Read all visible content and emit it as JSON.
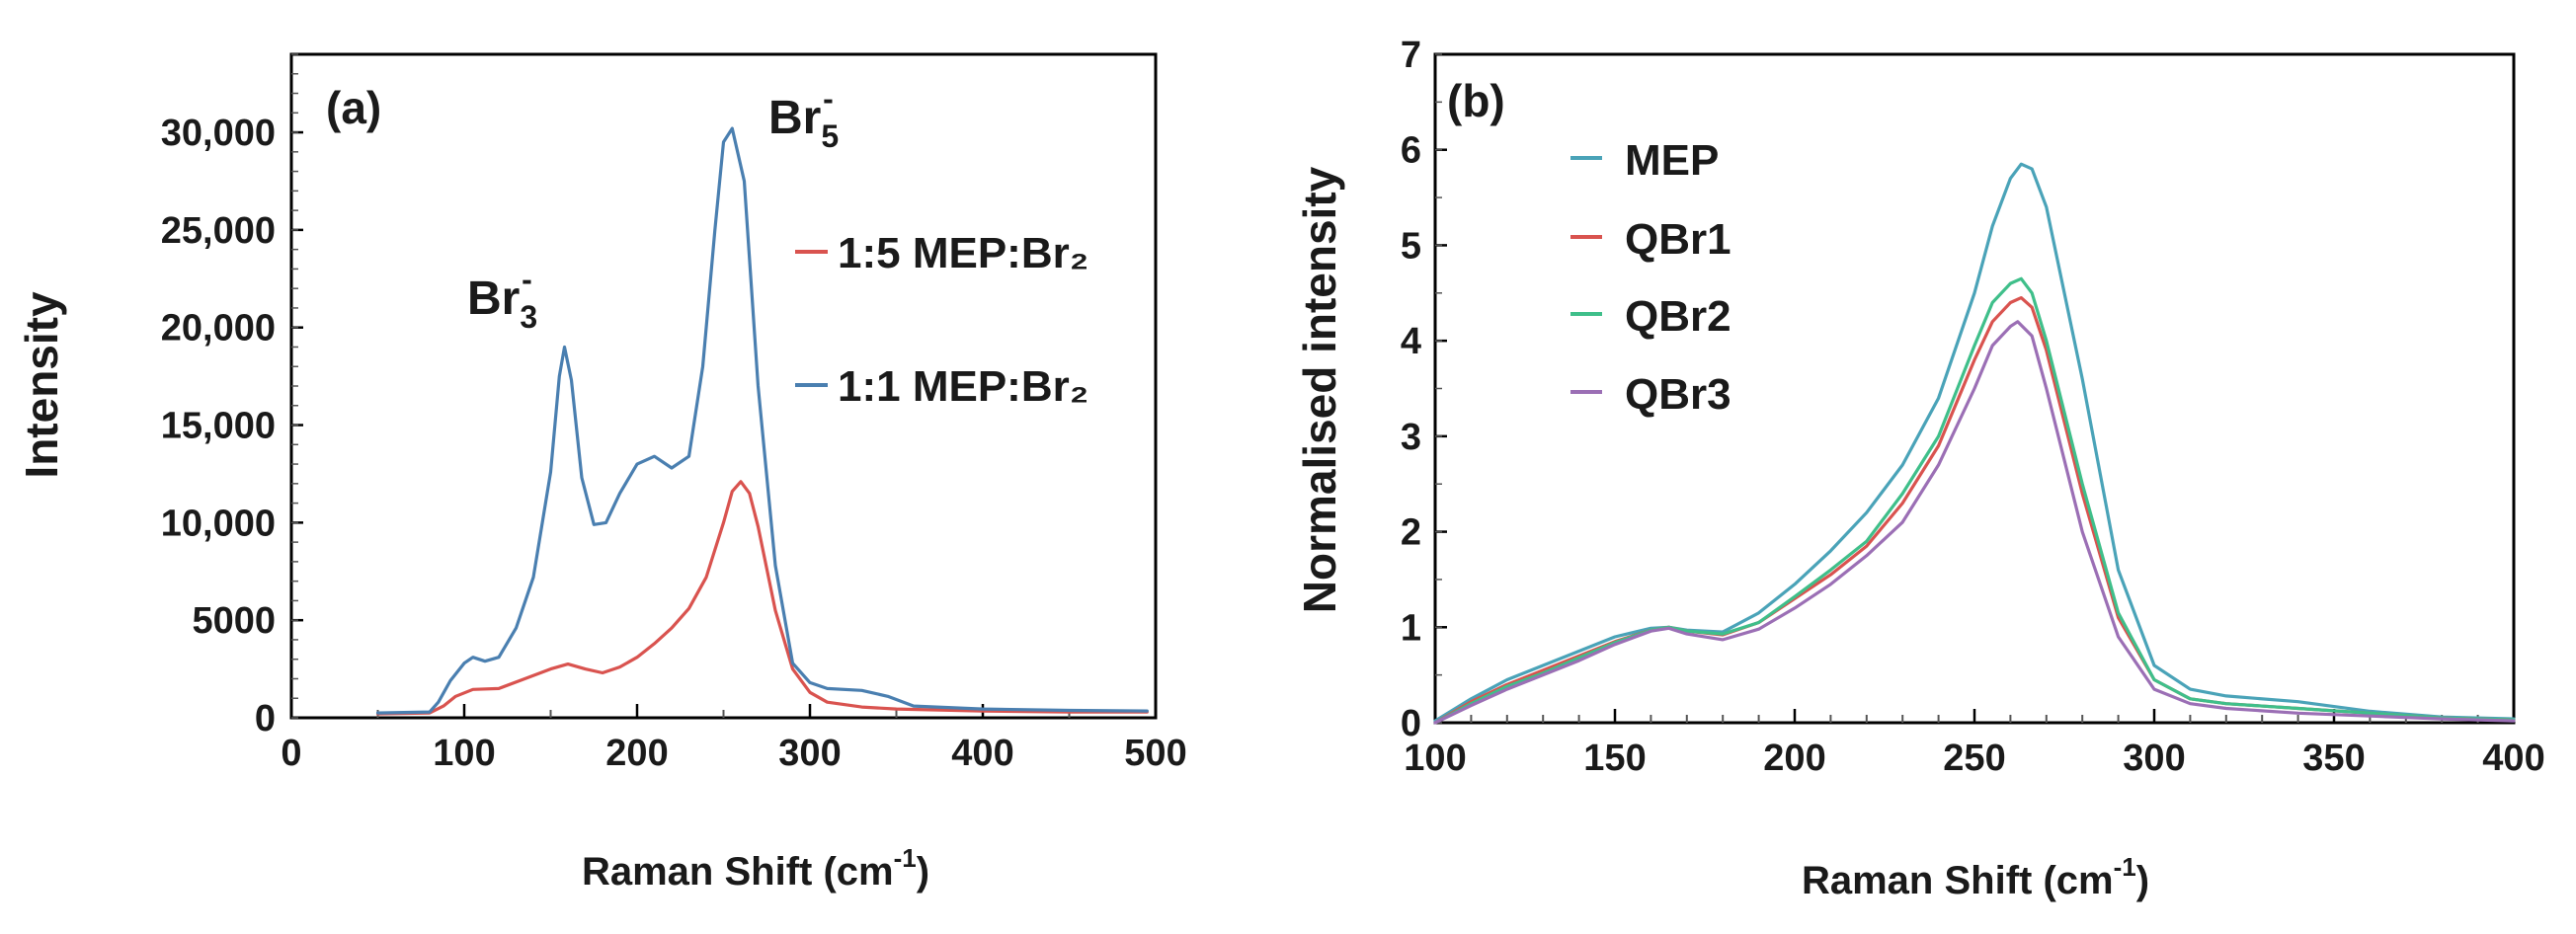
{
  "chart_data": [
    {
      "panel": "(a)",
      "type": "line",
      "xlabel_main": "Raman Shift (cm",
      "xlabel_sup": "-1",
      "xlabel_close": ")",
      "ylabel": "Intensity",
      "xlim": [
        0,
        500
      ],
      "ylim": [
        0,
        34000
      ],
      "xticks": [
        0,
        100,
        200,
        300,
        400,
        500
      ],
      "xtick_labels": [
        "0",
        "100",
        "200",
        "300",
        "400",
        "500"
      ],
      "yticks": [
        0,
        5000,
        10000,
        15000,
        20000,
        25000,
        30000
      ],
      "ytick_labels": [
        "0",
        "5000",
        "10,000",
        "15,000",
        "20,000",
        "25,000",
        "30,000"
      ],
      "annotations": [
        {
          "base": "Br",
          "sub": "3",
          "sup": "-",
          "x": 140,
          "y": 20500
        },
        {
          "base": "Br",
          "sub": "5",
          "sup": "-",
          "x": 275,
          "y": 29600
        }
      ],
      "series": [
        {
          "name": "1:5 MEP:Br₂",
          "color": "#d9534f",
          "x": [
            50,
            80,
            88,
            95,
            105,
            120,
            135,
            150,
            160,
            170,
            180,
            190,
            200,
            210,
            220,
            230,
            240,
            250,
            255,
            260,
            265,
            270,
            280,
            290,
            300,
            310,
            330,
            350,
            400,
            450,
            495
          ],
          "y": [
            200,
            250,
            600,
            1100,
            1450,
            1500,
            2000,
            2500,
            2750,
            2500,
            2300,
            2600,
            3100,
            3800,
            4600,
            5600,
            7200,
            10000,
            11600,
            12100,
            11500,
            9800,
            5500,
            2500,
            1300,
            800,
            550,
            450,
            350,
            300,
            300
          ]
        },
        {
          "name": "1:1 MEP:Br₂",
          "color": "#4a7fb0",
          "x": [
            50,
            80,
            85,
            92,
            100,
            105,
            112,
            120,
            130,
            140,
            150,
            155,
            158,
            162,
            168,
            175,
            182,
            190,
            200,
            210,
            220,
            230,
            238,
            245,
            250,
            255,
            262,
            270,
            280,
            290,
            300,
            310,
            330,
            345,
            360,
            400,
            450,
            495
          ],
          "y": [
            250,
            300,
            800,
            1900,
            2800,
            3100,
            2900,
            3100,
            4600,
            7200,
            12600,
            17500,
            19000,
            17300,
            12300,
            9900,
            10000,
            11500,
            13000,
            13400,
            12800,
            13400,
            18000,
            25000,
            29500,
            30200,
            27500,
            17000,
            7800,
            2800,
            1800,
            1500,
            1400,
            1100,
            600,
            450,
            380,
            350
          ]
        }
      ]
    },
    {
      "panel": "(b)",
      "type": "line",
      "xlabel_main": "Raman Shift (cm",
      "xlabel_sup": "-1",
      "xlabel_close": ")",
      "ylabel": "Normalised intensity",
      "xlim": [
        100,
        400
      ],
      "ylim": [
        0,
        7
      ],
      "xticks": [
        100,
        150,
        200,
        250,
        300,
        350,
        400
      ],
      "xtick_labels": [
        "100",
        "150",
        "200",
        "250",
        "300",
        "350",
        "400"
      ],
      "yticks": [
        0,
        1,
        2,
        3,
        4,
        5,
        6,
        7
      ],
      "ytick_labels": [
        "0",
        "1",
        "2",
        "3",
        "4",
        "5",
        "6",
        "7"
      ],
      "series": [
        {
          "name": "MEP",
          "color": "#4aa3b8",
          "x": [
            100,
            110,
            120,
            130,
            140,
            150,
            160,
            165,
            170,
            180,
            190,
            200,
            210,
            220,
            230,
            240,
            250,
            255,
            260,
            263,
            266,
            270,
            280,
            290,
            300,
            310,
            320,
            340,
            360,
            380,
            400
          ],
          "y": [
            0.02,
            0.25,
            0.45,
            0.6,
            0.75,
            0.9,
            0.99,
            1.0,
            0.97,
            0.95,
            1.15,
            1.45,
            1.8,
            2.2,
            2.7,
            3.4,
            4.5,
            5.2,
            5.7,
            5.85,
            5.8,
            5.4,
            3.6,
            1.6,
            0.6,
            0.35,
            0.28,
            0.22,
            0.12,
            0.06,
            0.04
          ]
        },
        {
          "name": "QBr1",
          "color": "#d9534f",
          "x": [
            100,
            110,
            120,
            130,
            140,
            150,
            160,
            165,
            170,
            180,
            190,
            200,
            210,
            220,
            230,
            240,
            250,
            255,
            260,
            263,
            266,
            270,
            280,
            290,
            300,
            310,
            320,
            340,
            360,
            380,
            400
          ],
          "y": [
            0.0,
            0.22,
            0.4,
            0.55,
            0.7,
            0.85,
            0.97,
            1.0,
            0.96,
            0.92,
            1.05,
            1.3,
            1.55,
            1.85,
            2.3,
            2.9,
            3.8,
            4.2,
            4.4,
            4.45,
            4.35,
            3.9,
            2.4,
            1.1,
            0.45,
            0.25,
            0.2,
            0.15,
            0.1,
            0.05,
            0.03
          ]
        },
        {
          "name": "QBr2",
          "color": "#3fbf8a",
          "x": [
            100,
            110,
            120,
            130,
            140,
            150,
            160,
            165,
            170,
            180,
            190,
            200,
            210,
            220,
            230,
            240,
            250,
            255,
            260,
            263,
            266,
            270,
            280,
            290,
            300,
            310,
            320,
            340,
            360,
            380,
            400
          ],
          "y": [
            0.0,
            0.2,
            0.38,
            0.52,
            0.68,
            0.84,
            0.97,
            1.0,
            0.96,
            0.93,
            1.05,
            1.32,
            1.6,
            1.9,
            2.4,
            3.0,
            3.95,
            4.4,
            4.6,
            4.65,
            4.5,
            4.0,
            2.5,
            1.15,
            0.45,
            0.25,
            0.2,
            0.15,
            0.1,
            0.05,
            0.03
          ]
        },
        {
          "name": "QBr3",
          "color": "#9b6fb5",
          "x": [
            100,
            110,
            120,
            130,
            140,
            150,
            160,
            165,
            170,
            180,
            190,
            200,
            210,
            220,
            230,
            240,
            250,
            255,
            260,
            262,
            266,
            270,
            280,
            290,
            300,
            310,
            320,
            340,
            360,
            380,
            400
          ],
          "y": [
            0.0,
            0.18,
            0.35,
            0.5,
            0.65,
            0.82,
            0.96,
            0.99,
            0.93,
            0.87,
            0.98,
            1.2,
            1.45,
            1.75,
            2.1,
            2.7,
            3.5,
            3.95,
            4.15,
            4.2,
            4.05,
            3.5,
            2.0,
            0.9,
            0.35,
            0.2,
            0.15,
            0.1,
            0.07,
            0.04,
            0.02
          ]
        }
      ]
    }
  ]
}
